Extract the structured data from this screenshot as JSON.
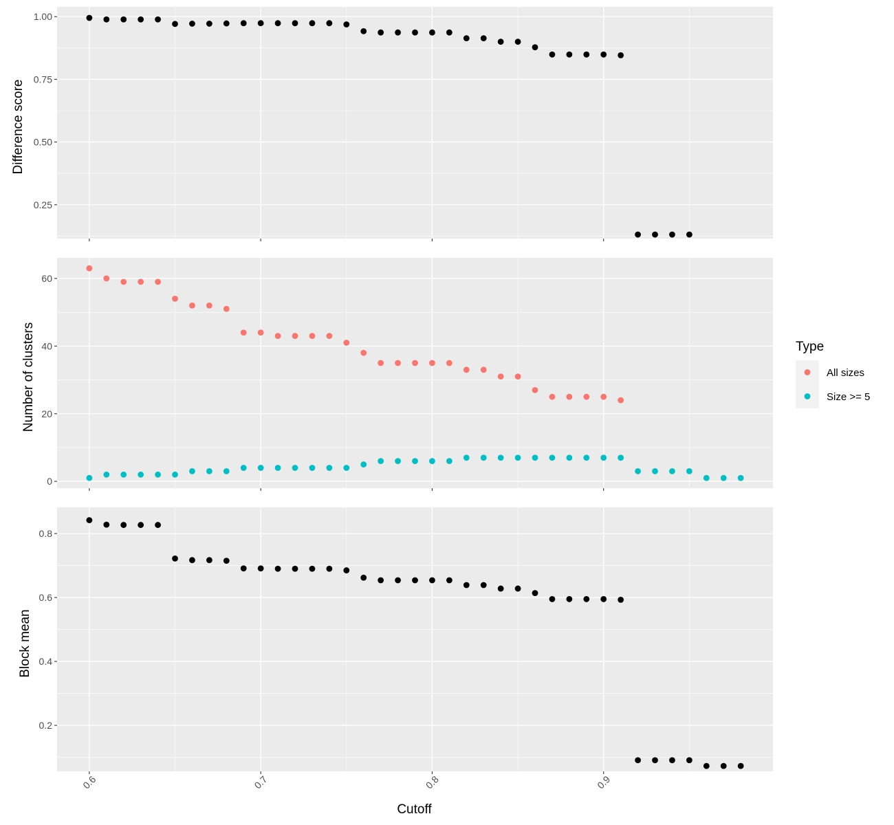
{
  "chart_data": {
    "type": "scatter",
    "xlabel": "Cutoff",
    "x_ticks": [
      "0.6",
      "0.7",
      "0.8",
      "0.9"
    ],
    "x_tick_values": [
      0.6,
      0.7,
      0.8,
      0.9
    ],
    "xlim": [
      0.5812,
      0.9988
    ],
    "grid": true,
    "legend": {
      "title": "Type",
      "placement": "right",
      "entries": [
        {
          "label": "All sizes",
          "color": "#F8766D"
        },
        {
          "label": "Size >= 5",
          "color": "#00BFC4"
        }
      ]
    },
    "panels": [
      {
        "ylabel": "Difference score",
        "ylim": [
          0.115,
          1.039
        ],
        "y_ticks": [
          "0.25",
          "0.50",
          "0.75",
          "1.00"
        ],
        "y_tick_values": [
          0.25,
          0.5,
          0.75,
          1.0
        ],
        "series": [
          {
            "color": "#000000",
            "x": [
              0.6,
              0.61,
              0.62,
              0.63,
              0.64,
              0.65,
              0.66,
              0.67,
              0.68,
              0.69,
              0.7,
              0.71,
              0.72,
              0.73,
              0.74,
              0.75,
              0.76,
              0.77,
              0.78,
              0.79,
              0.8,
              0.81,
              0.82,
              0.83,
              0.84,
              0.85,
              0.86,
              0.87,
              0.88,
              0.89,
              0.9,
              0.91,
              0.92,
              0.93,
              0.94,
              0.95
            ],
            "y": [
              0.995,
              0.989,
              0.989,
              0.989,
              0.989,
              0.971,
              0.972,
              0.972,
              0.973,
              0.974,
              0.974,
              0.974,
              0.974,
              0.974,
              0.974,
              0.969,
              0.942,
              0.937,
              0.937,
              0.937,
              0.937,
              0.937,
              0.914,
              0.914,
              0.9,
              0.9,
              0.878,
              0.849,
              0.849,
              0.849,
              0.849,
              0.846,
              0.131,
              0.131,
              0.131,
              0.131
            ]
          }
        ]
      },
      {
        "ylabel": "Number of clusters",
        "ylim": [
          -2.0,
          66.1
        ],
        "y_ticks": [
          "0",
          "20",
          "40",
          "60"
        ],
        "y_tick_values": [
          0,
          20,
          40,
          60
        ],
        "series": [
          {
            "name": "All sizes",
            "color": "#F8766D",
            "x": [
              0.6,
              0.61,
              0.62,
              0.63,
              0.64,
              0.65,
              0.66,
              0.67,
              0.68,
              0.69,
              0.7,
              0.71,
              0.72,
              0.73,
              0.74,
              0.75,
              0.76,
              0.77,
              0.78,
              0.79,
              0.8,
              0.81,
              0.82,
              0.83,
              0.84,
              0.85,
              0.86,
              0.87,
              0.88,
              0.89,
              0.9,
              0.91
            ],
            "y": [
              63,
              60,
              59,
              59,
              59,
              54,
              52,
              52,
              51,
              44,
              44,
              43,
              43,
              43,
              43,
              41,
              38,
              35,
              35,
              35,
              35,
              35,
              33,
              33,
              31,
              31,
              27,
              25,
              25,
              25,
              25,
              24
            ]
          },
          {
            "name": "Size >= 5",
            "color": "#00BFC4",
            "x": [
              0.6,
              0.61,
              0.62,
              0.63,
              0.64,
              0.65,
              0.66,
              0.67,
              0.68,
              0.69,
              0.7,
              0.71,
              0.72,
              0.73,
              0.74,
              0.75,
              0.76,
              0.77,
              0.78,
              0.79,
              0.8,
              0.81,
              0.82,
              0.83,
              0.84,
              0.85,
              0.86,
              0.87,
              0.88,
              0.89,
              0.9,
              0.91,
              0.92,
              0.93,
              0.94,
              0.95,
              0.96,
              0.97,
              0.98
            ],
            "y": [
              1,
              2,
              2,
              2,
              2,
              2,
              3,
              3,
              3,
              4,
              4,
              4,
              4,
              4,
              4,
              4,
              5,
              6,
              6,
              6,
              6,
              6,
              7,
              7,
              7,
              7,
              7,
              7,
              7,
              7,
              7,
              7,
              3,
              3,
              3,
              3,
              1,
              1,
              1
            ]
          }
        ]
      },
      {
        "ylabel": "Block mean",
        "ylim": [
          0.056,
          0.882
        ],
        "y_ticks": [
          "0.2",
          "0.4",
          "0.6",
          "0.8"
        ],
        "y_tick_values": [
          0.2,
          0.4,
          0.6,
          0.8
        ],
        "series": [
          {
            "color": "#000000",
            "x": [
              0.6,
              0.61,
              0.62,
              0.63,
              0.64,
              0.65,
              0.66,
              0.67,
              0.68,
              0.69,
              0.7,
              0.71,
              0.72,
              0.73,
              0.74,
              0.75,
              0.76,
              0.77,
              0.78,
              0.79,
              0.8,
              0.81,
              0.82,
              0.83,
              0.84,
              0.85,
              0.86,
              0.87,
              0.88,
              0.89,
              0.9,
              0.91,
              0.92,
              0.93,
              0.94,
              0.95,
              0.96,
              0.97,
              0.98
            ],
            "y": [
              0.842,
              0.828,
              0.827,
              0.827,
              0.827,
              0.722,
              0.717,
              0.717,
              0.715,
              0.691,
              0.691,
              0.69,
              0.69,
              0.69,
              0.69,
              0.685,
              0.662,
              0.654,
              0.654,
              0.654,
              0.654,
              0.654,
              0.639,
              0.639,
              0.628,
              0.628,
              0.614,
              0.595,
              0.595,
              0.595,
              0.595,
              0.593,
              0.091,
              0.091,
              0.091,
              0.091,
              0.073,
              0.073,
              0.073
            ]
          }
        ]
      }
    ]
  }
}
